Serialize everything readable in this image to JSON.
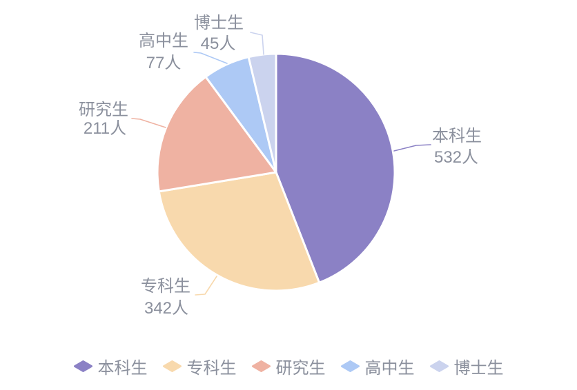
{
  "chart_data": {
    "type": "pie",
    "title": "",
    "unit": "人",
    "legend_position": "bottom",
    "label_color": "#8b909d",
    "slice_border_color": "#ffffff",
    "series": [
      {
        "name": "本科生",
        "value": 532,
        "display_value": "532人",
        "color": "#8b81c5"
      },
      {
        "name": "专科生",
        "value": 342,
        "display_value": "342人",
        "color": "#f8d9ad"
      },
      {
        "name": "研究生",
        "value": 211,
        "display_value": "211人",
        "color": "#efb2a2"
      },
      {
        "name": "高中生",
        "value": 77,
        "display_value": "77人",
        "color": "#adc9f5"
      },
      {
        "name": "博士生",
        "value": 45,
        "display_value": "45人",
        "color": "#cbd3ee"
      }
    ],
    "legend": [
      "本科生",
      "专科生",
      "研究生",
      "高中生",
      "博士生"
    ]
  }
}
